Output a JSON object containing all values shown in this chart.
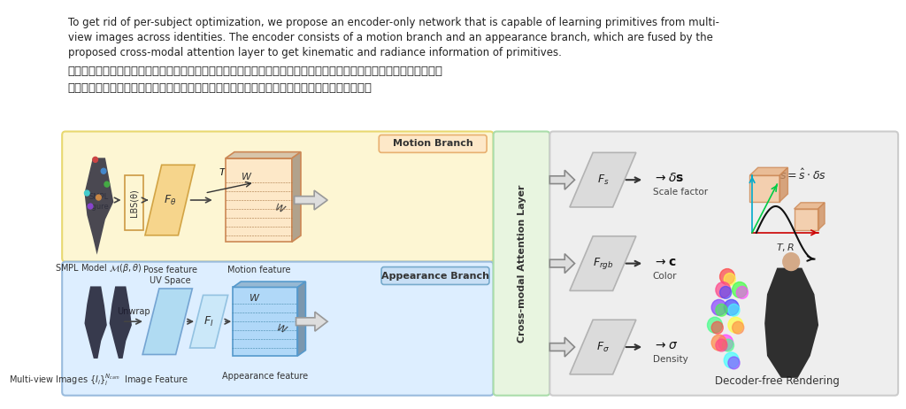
{
  "bg_color": "#ffffff",
  "text_english_line1": "To get rid of per-subject optimization, we propose an encoder-only network that is capable of learning primitives from multi-",
  "text_english_line2": "view images across identities. The encoder consists of a motion branch and an appearance branch, which are fused by the",
  "text_english_line3": "proposed cross-modal attention layer to get kinematic and radiance information of primitives.",
  "text_chinese_line1": "为了摆脱针对每个主题的优化，我们提出了一种仅编码器的网络，该网络能够从跨身份的多视图图像中学习基元。编码器",
  "text_chinese_line2": "由运动分支和外观分支组成，它们由所提出的跨模态注意层融合以获得基元的运动学和辐射信息。",
  "yellow_bg": "#fdf6d3",
  "yellow_border": "#e8d870",
  "blue_bg": "#ddeeff",
  "blue_border": "#aaccee",
  "green_bg": "#e8f5e0",
  "green_border": "#aaddaa",
  "gray_bg": "#e8e8e8",
  "gray_border": "#b0b0b0",
  "motion_branch_color": "#fde8c8",
  "appearance_branch_color": "#c8dff5",
  "label_color": "#333333",
  "arrow_color": "#444444"
}
